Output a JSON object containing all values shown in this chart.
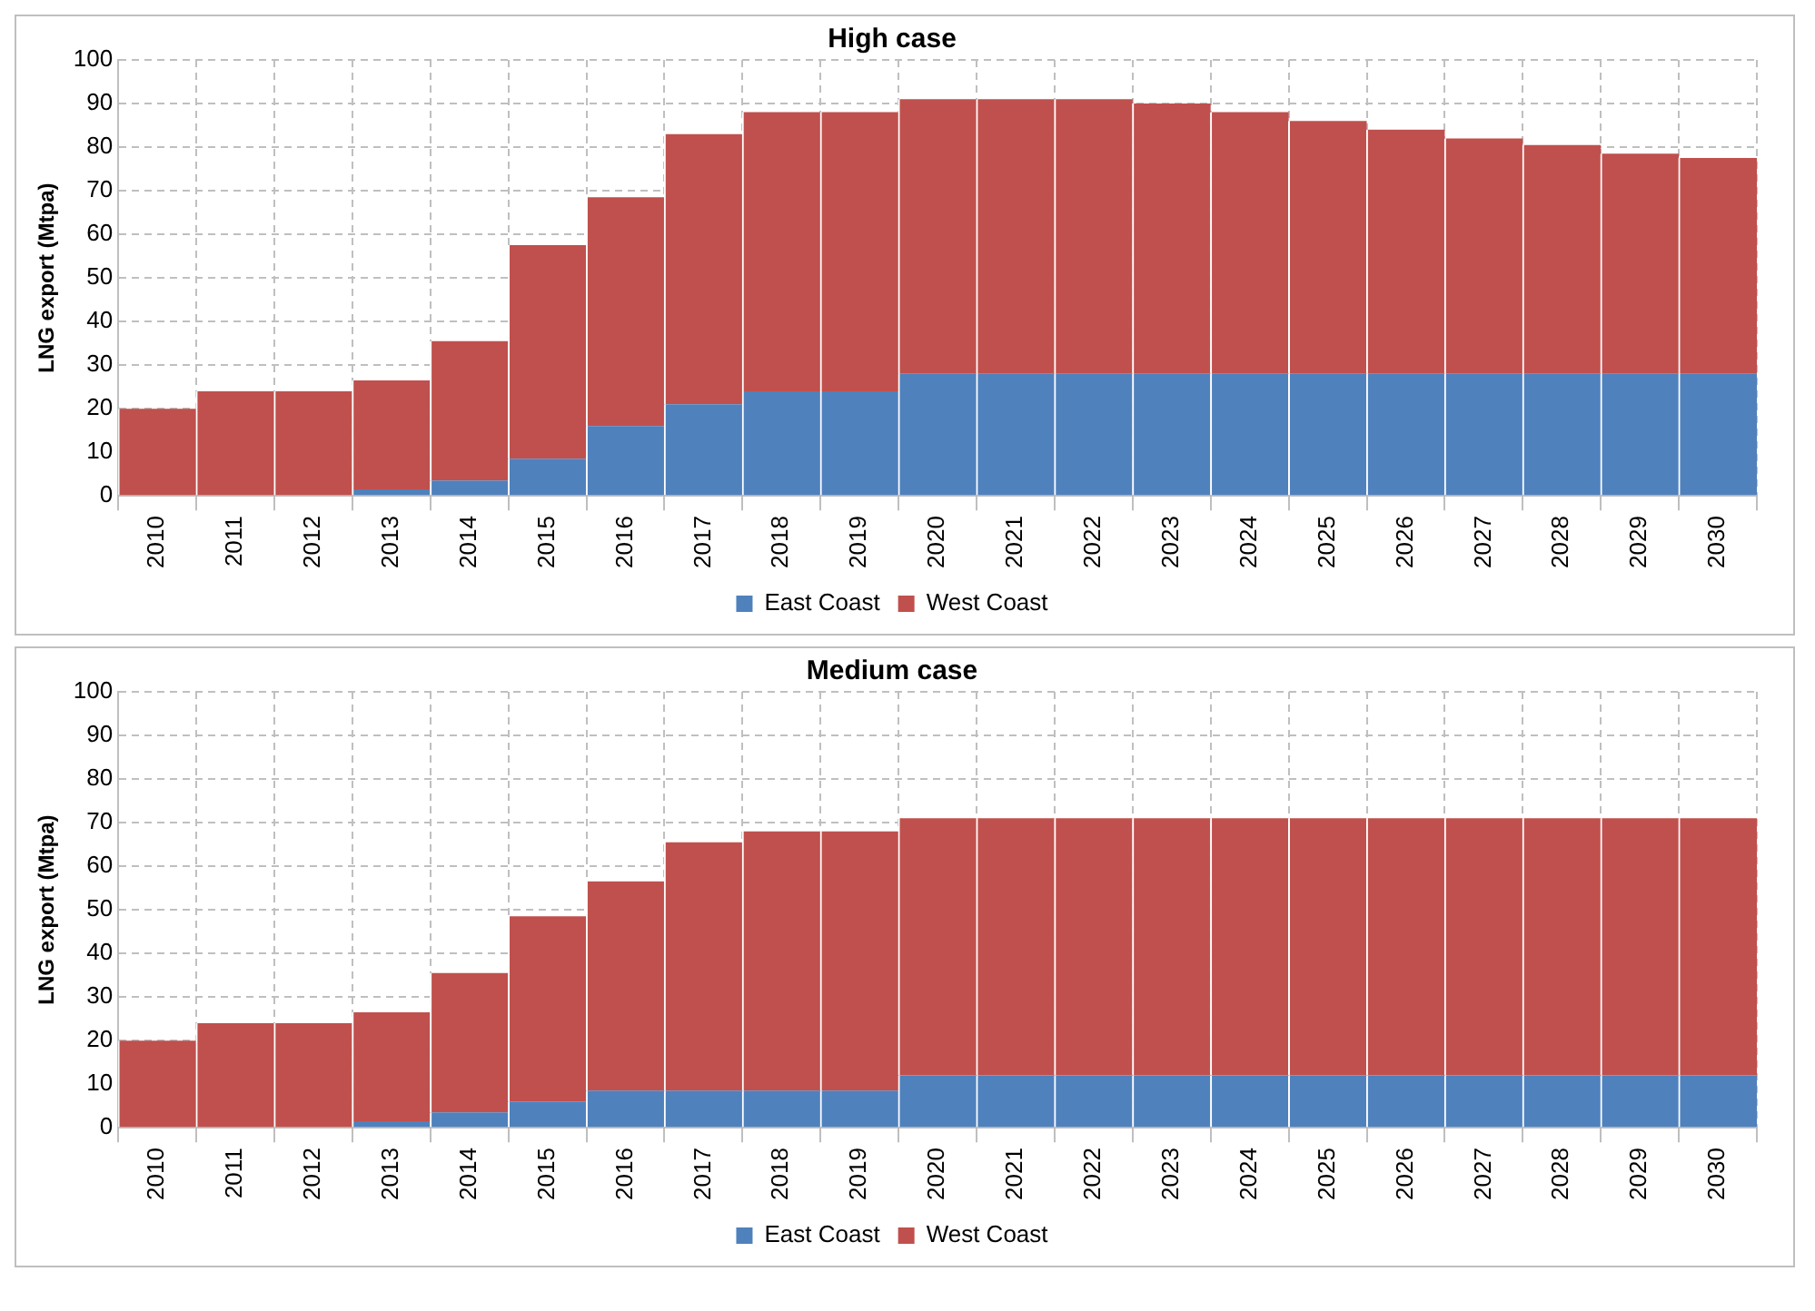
{
  "chart_data": [
    {
      "type": "bar",
      "title": "High case",
      "ylabel": "LNG export (Mtpa)",
      "stacked": true,
      "grid": true,
      "legend": "bottom",
      "categories": [
        "2010",
        "2011",
        "2012",
        "2013",
        "2014",
        "2015",
        "2016",
        "2017",
        "2018",
        "2019",
        "2020",
        "2021",
        "2022",
        "2023",
        "2024",
        "2025",
        "2026",
        "2027",
        "2028",
        "2029",
        "2030"
      ],
      "ylim": [
        0,
        100
      ],
      "yticks": [
        0,
        10,
        20,
        30,
        40,
        50,
        60,
        70,
        80,
        90,
        100
      ],
      "series": [
        {
          "name": "East Coast",
          "color": "#4f81bd",
          "values": [
            0,
            0,
            0,
            1.5,
            3.5,
            8.5,
            16,
            21,
            24,
            24,
            28,
            28,
            28,
            28,
            28,
            28,
            28,
            28,
            28,
            28,
            28
          ]
        },
        {
          "name": "West Coast",
          "color": "#c0504d",
          "values": [
            20,
            24,
            24,
            25,
            32,
            49,
            52.5,
            62,
            64,
            64,
            63,
            63,
            63,
            62,
            60,
            58,
            56,
            54,
            52.5,
            50.5,
            49.5
          ]
        }
      ]
    },
    {
      "type": "bar",
      "title": "Medium case",
      "ylabel": "LNG export (Mtpa)",
      "stacked": true,
      "grid": true,
      "legend": "bottom",
      "categories": [
        "2010",
        "2011",
        "2012",
        "2013",
        "2014",
        "2015",
        "2016",
        "2017",
        "2018",
        "2019",
        "2020",
        "2021",
        "2022",
        "2023",
        "2024",
        "2025",
        "2026",
        "2027",
        "2028",
        "2029",
        "2030"
      ],
      "ylim": [
        0,
        100
      ],
      "yticks": [
        0,
        10,
        20,
        30,
        40,
        50,
        60,
        70,
        80,
        90,
        100
      ],
      "series": [
        {
          "name": "East Coast",
          "color": "#4f81bd",
          "values": [
            0,
            0,
            0,
            1.5,
            3.5,
            6,
            8.5,
            8.5,
            8.5,
            8.5,
            12,
            12,
            12,
            12,
            12,
            12,
            12,
            12,
            12,
            12,
            12
          ]
        },
        {
          "name": "West Coast",
          "color": "#c0504d",
          "values": [
            20,
            24,
            24,
            25,
            32,
            42.5,
            48,
            57,
            59.5,
            59.5,
            59,
            59,
            59,
            59,
            59,
            59,
            59,
            59,
            59,
            59,
            59
          ]
        }
      ]
    }
  ]
}
